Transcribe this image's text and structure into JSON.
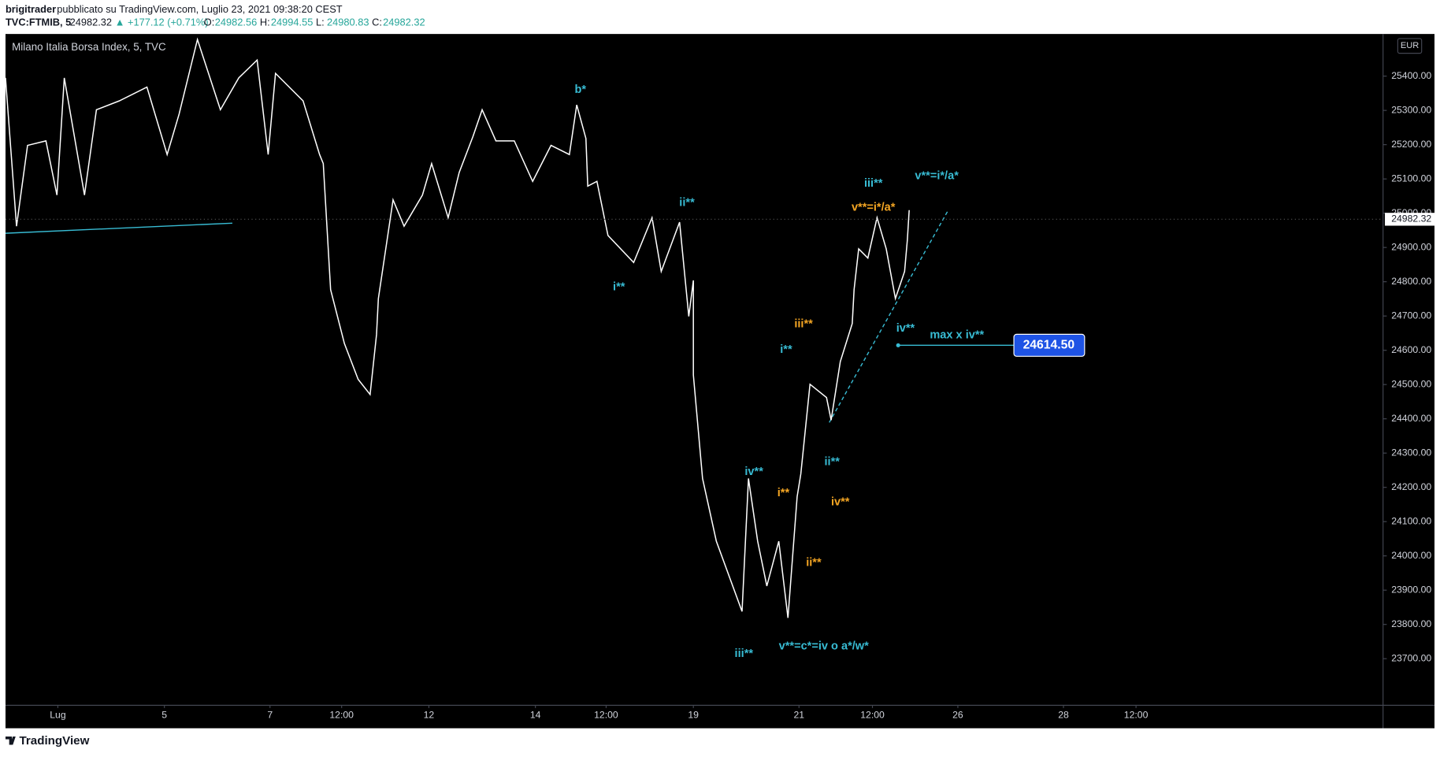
{
  "header": {
    "author": "brigitrader",
    "published": "pubblicato su TradingView.com, Luglio 23, 2021 09:38:20 CEST",
    "symbol": "TVC:FTMIB, 5",
    "price": "24982.32",
    "change": "▲ +177.12 (+0.71%)",
    "ohlc": [
      {
        "label": "O:",
        "value": "24982.56"
      },
      {
        "label": "H:",
        "value": "24994.55"
      },
      {
        "label": "L:",
        "value": "24980.83"
      },
      {
        "label": "C:",
        "value": "24982.32"
      }
    ],
    "currency": "EUR"
  },
  "chart_data": {
    "type": "line",
    "title": "Milano Italia Borsa Index, 5, TVC",
    "series": [
      {
        "color": "#ffffff",
        "x": [
          0,
          12,
          24,
          44,
          56,
          64,
          86,
          99,
          124,
          154,
          176,
          189,
          209,
          234,
          254,
          274,
          286,
          294,
          324,
          342,
          346,
          354,
          369,
          384,
          397,
          404,
          406,
          422,
          434,
          454,
          464,
          482,
          494,
          509,
          519,
          534,
          554,
          574,
          594,
          614,
          622,
          632,
          634,
          644,
          656,
          684,
          704,
          714,
          734,
          744,
          749,
          749,
          759,
          774,
          802,
          809,
          819,
          829,
          842,
          852,
          862,
          866,
          876,
          894,
          899,
          909,
          922,
          924,
          929,
          939,
          949,
          959,
          969,
          979,
          982,
          984
        ],
        "values": [
          25395,
          24962,
          25198,
          25211,
          25053,
          25395,
          25053,
          25302,
          25328,
          25368,
          25171,
          25289,
          25507,
          25302,
          25395,
          25447,
          25171,
          25408,
          25328,
          25171,
          25145,
          24777,
          24620,
          24515,
          24471,
          24646,
          24751,
          25039,
          24962,
          25053,
          25145,
          24987,
          25119,
          25224,
          25302,
          25211,
          25211,
          25093,
          25198,
          25171,
          25316,
          25218,
          25079,
          25093,
          24935,
          24856,
          24987,
          24830,
          24974,
          24699,
          24804,
          24528,
          24226,
          24043,
          23838,
          24226,
          24043,
          23912,
          24043,
          23819,
          24173,
          24239,
          24501,
          24462,
          24396,
          24567,
          24678,
          24777,
          24896,
          24869,
          24987,
          24896,
          24751,
          24830,
          24922,
          25009
        ]
      }
    ],
    "last_price": {
      "value": 24982.32,
      "label": "24982.32"
    },
    "levels": [
      {
        "value": 24614.5,
        "label": "24614.50",
        "note": "max x iv**"
      }
    ],
    "annotations": [
      {
        "text": "b*",
        "color": "#38bcd4"
      },
      {
        "text": "ii**",
        "color": "#38bcd4"
      },
      {
        "text": "i**",
        "color": "#38bcd4"
      },
      {
        "text": "iii**",
        "color": "#38bcd4"
      },
      {
        "text": "v**=i*/a*",
        "color": "#38bcd4"
      },
      {
        "text": "v**=i*/a*",
        "color": "#f5a623"
      },
      {
        "text": "iii**",
        "color": "#f5a623"
      },
      {
        "text": "i**",
        "color": "#38bcd4"
      },
      {
        "text": "iv**",
        "color": "#38bcd4"
      },
      {
        "text": "iv**",
        "color": "#38bcd4"
      },
      {
        "text": "ii**",
        "color": "#38bcd4"
      },
      {
        "text": "i**",
        "color": "#f5a623"
      },
      {
        "text": "iv**",
        "color": "#f5a623"
      },
      {
        "text": "ii**",
        "color": "#f5a623"
      },
      {
        "text": "iii**",
        "color": "#38bcd4"
      },
      {
        "text": "v**=c*=iv o a*/w*",
        "color": "#38bcd4"
      }
    ],
    "xlim": [
      0,
      1500
    ],
    "xticks": [
      {
        "value": 57,
        "label": "Lug"
      },
      {
        "value": 173,
        "label": "5"
      },
      {
        "value": 288,
        "label": "7"
      },
      {
        "value": 366,
        "label": "12:00"
      },
      {
        "value": 461,
        "label": "12"
      },
      {
        "value": 577,
        "label": "14"
      },
      {
        "value": 654,
        "label": "12:00"
      },
      {
        "value": 749,
        "label": "19"
      },
      {
        "value": 864,
        "label": "21"
      },
      {
        "value": 944,
        "label": "12:00"
      },
      {
        "value": 1037,
        "label": "26"
      },
      {
        "value": 1152,
        "label": "28"
      },
      {
        "value": 1231,
        "label": "12:00"
      }
    ],
    "ylim": [
      23564,
      25523
    ],
    "yticks": [
      {
        "value": 23700,
        "label": "23700.00"
      },
      {
        "value": 23800,
        "label": "23800.00"
      },
      {
        "value": 23900,
        "label": "23900.00"
      },
      {
        "value": 24000,
        "label": "24000.00"
      },
      {
        "value": 24100,
        "label": "24100.00"
      },
      {
        "value": 24200,
        "label": "24200.00"
      },
      {
        "value": 24300,
        "label": "24300.00"
      },
      {
        "value": 24400,
        "label": "24400.00"
      },
      {
        "value": 24500,
        "label": "24500.00"
      },
      {
        "value": 24600,
        "label": "24600.00"
      },
      {
        "value": 24700,
        "label": "24700.00"
      },
      {
        "value": 24800,
        "label": "24800.00"
      },
      {
        "value": 24900,
        "label": "24900.00"
      },
      {
        "value": 25000,
        "label": "25000.00"
      },
      {
        "value": 25100,
        "label": "25100.00"
      },
      {
        "value": 25200,
        "label": "25200.00"
      },
      {
        "value": 25300,
        "label": "25300.00"
      },
      {
        "value": 25400,
        "label": "25400.00"
      }
    ],
    "footer": "TradingView"
  }
}
